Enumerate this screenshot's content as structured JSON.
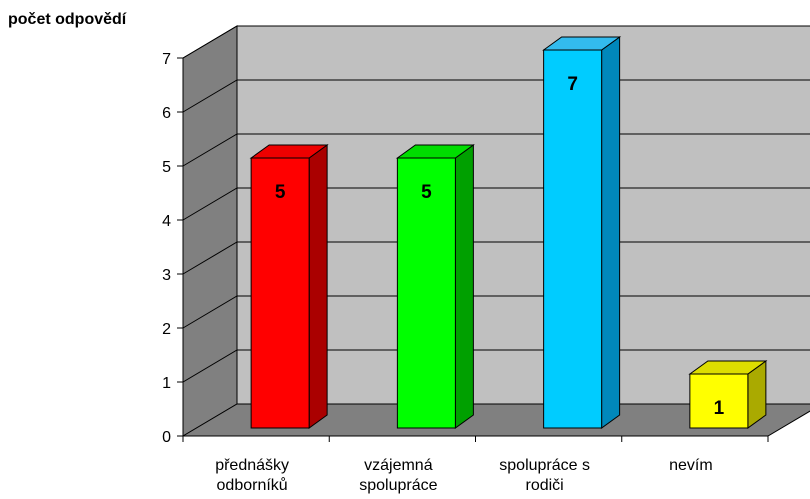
{
  "chart_data": {
    "type": "bar",
    "ylabel": "počet odpovědí",
    "xlabel": "",
    "ylim": [
      0,
      7
    ],
    "yticks": [
      "0",
      "1",
      "2",
      "3",
      "4",
      "5",
      "6",
      "7"
    ],
    "categories": [
      [
        "přednášky",
        "odborníků"
      ],
      [
        "vzájemná",
        "spolupráce"
      ],
      [
        "spolupráce s",
        "rodiči"
      ],
      [
        "nevím"
      ]
    ],
    "values": [
      5,
      5,
      7,
      1
    ],
    "data_labels": [
      "5",
      "5",
      "7",
      "1"
    ],
    "colors": [
      {
        "front": "#ff0000",
        "top": "#ee0000",
        "side": "#aa0000"
      },
      {
        "front": "#00ff00",
        "top": "#00dd00",
        "side": "#00a000"
      },
      {
        "front": "#00ccff",
        "top": "#33bbee",
        "side": "#0088bb"
      },
      {
        "front": "#ffff00",
        "top": "#dddd00",
        "side": "#aaaa00"
      }
    ],
    "grid": true,
    "style": "3d",
    "wall_color": "#c0c0c0",
    "floor_color": "#808080",
    "side_wall_color": "#808080"
  }
}
